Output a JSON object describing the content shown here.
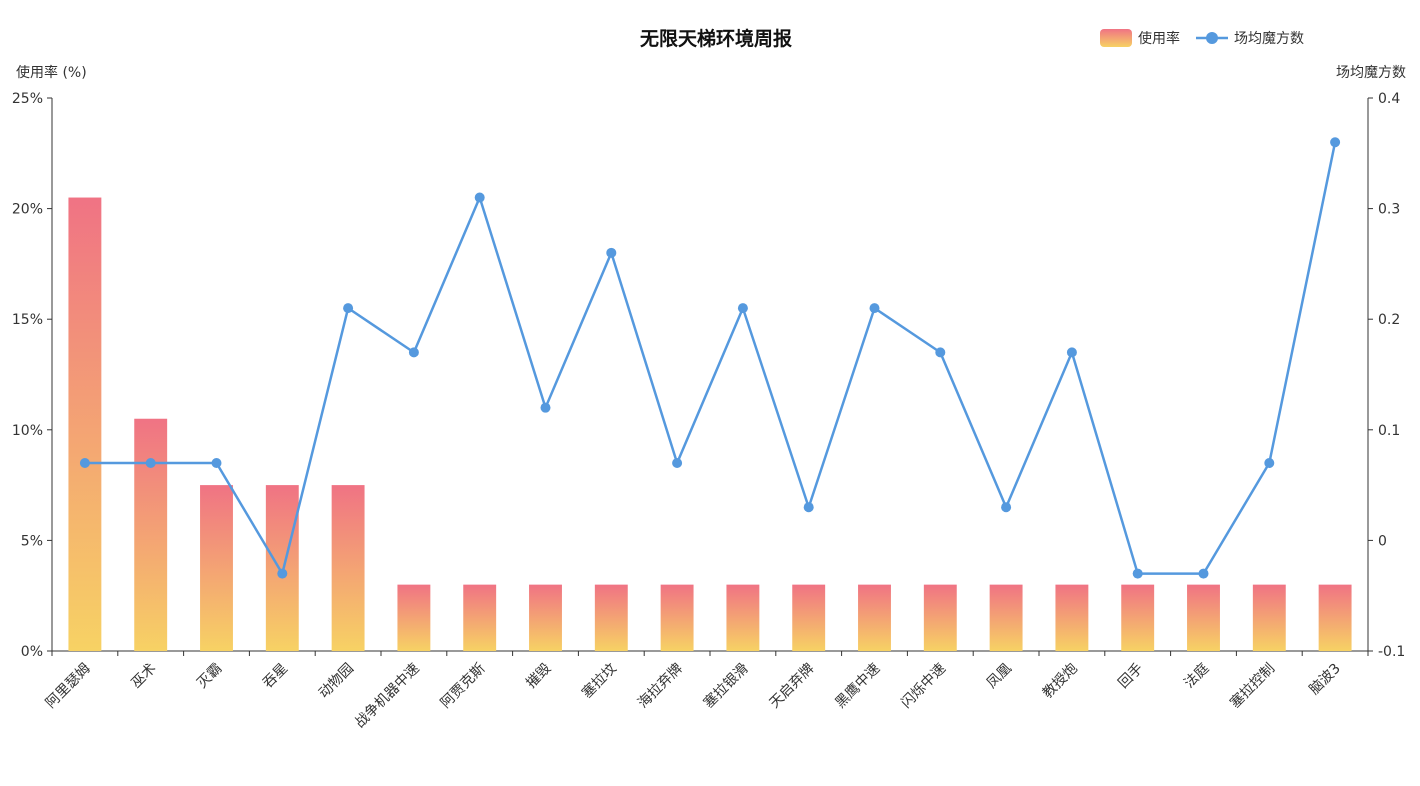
{
  "chart_data": {
    "type": "bar",
    "title": "无限天梯环境周报",
    "categories": [
      "阿里瑟姆",
      "巫术",
      "灭霸",
      "吞星",
      "动物园",
      "战争机器中速",
      "阿贾克斯",
      "摧毁",
      "塞拉坟",
      "海拉弃牌",
      "塞拉银滑",
      "天启弃牌",
      "黑鹰中速",
      "闪烁中速",
      "凤凰",
      "教授炮",
      "回手",
      "法庭",
      "塞拉控制",
      "脑波3"
    ],
    "series": [
      {
        "name": "使用率",
        "type": "bar",
        "axis": "left",
        "values": [
          20.5,
          10.5,
          7.5,
          7.5,
          7.5,
          3,
          3,
          3,
          3,
          3,
          3,
          3,
          3,
          3,
          3,
          3,
          3,
          3,
          3,
          3
        ],
        "color_top": "#f07384",
        "color_bottom": "#f7d264"
      },
      {
        "name": "场均魔方数",
        "type": "line",
        "axis": "right",
        "values": [
          0.07,
          0.07,
          0.07,
          -0.03,
          0.21,
          0.17,
          0.31,
          0.12,
          0.26,
          0.07,
          0.21,
          0.03,
          0.21,
          0.17,
          0.03,
          0.17,
          -0.03,
          -0.03,
          0.07,
          0.36
        ],
        "color": "#5599de"
      }
    ],
    "y_left": {
      "label": "使用率 (%)",
      "ticks": [
        "0%",
        "5%",
        "10%",
        "15%",
        "20%",
        "25%"
      ],
      "ylim": [
        0,
        25
      ]
    },
    "y_right": {
      "label": "场均魔方数",
      "ticks": [
        "-0.1",
        "0",
        "0.1",
        "0.2",
        "0.3",
        "0.4"
      ],
      "ylim": [
        -0.1,
        0.4
      ]
    },
    "legend_position": "top-right",
    "grid": false
  }
}
